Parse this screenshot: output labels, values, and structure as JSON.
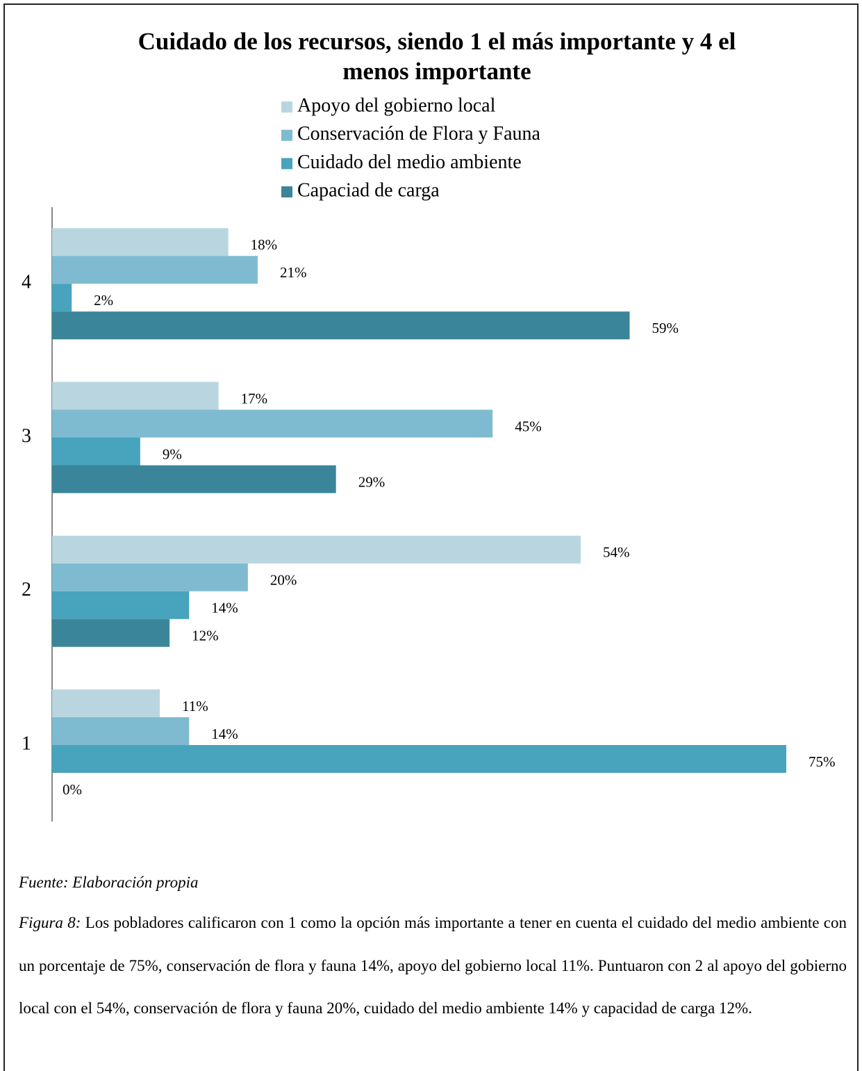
{
  "chart_data": {
    "type": "bar",
    "orientation": "horizontal",
    "title": "Cuidado de los recursos, siendo 1 el más importante y 4 el menos importante",
    "categories": [
      "1",
      "2",
      "3",
      "4"
    ],
    "series": [
      {
        "name": "Apoyo del gobierno local",
        "color": "#b9d6e0",
        "values": [
          11,
          54,
          17,
          18
        ],
        "value_labels": [
          "11%",
          "54%",
          "17%",
          "18%"
        ]
      },
      {
        "name": "Conservación de Flora y Fauna",
        "color": "#7fbbd0",
        "values": [
          14,
          20,
          45,
          21
        ],
        "value_labels": [
          "14%",
          "20%",
          "45%",
          "21%"
        ]
      },
      {
        "name": "Cuidado del medio ambiente",
        "color": "#48a3bc",
        "values": [
          75,
          14,
          9,
          2
        ],
        "value_labels": [
          "75%",
          "14%",
          "9%",
          "2%"
        ]
      },
      {
        "name": "Capaciad de carga",
        "color": "#3a8599",
        "values": [
          0,
          12,
          29,
          59
        ],
        "value_labels": [
          "0%",
          "12%",
          "29%",
          "59%"
        ]
      }
    ]
  },
  "source": "Fuente: Elaboración propia",
  "caption": {
    "label": "Figura 8:",
    "text": "Los pobladores calificaron con 1 como la opción más importante a tener en cuenta el cuidado del medio ambiente con un porcentaje de 75%, conservación de flora y fauna 14%, apoyo del gobierno local 11%. Puntuaron con 2 al apoyo del gobierno local con el 54%, conservación de flora y fauna 20%, cuidado del medio ambiente 14% y capacidad de carga 12%."
  }
}
